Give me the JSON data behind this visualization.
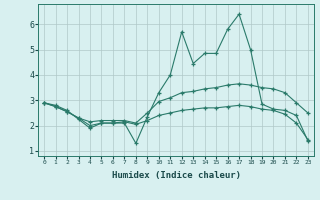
{
  "xlabel": "Humidex (Indice chaleur)",
  "x": [
    0,
    1,
    2,
    3,
    4,
    5,
    6,
    7,
    8,
    9,
    10,
    11,
    12,
    13,
    14,
    15,
    16,
    17,
    18,
    19,
    20,
    21,
    22,
    23
  ],
  "line_max": [
    2.9,
    2.8,
    2.6,
    2.25,
    1.9,
    2.1,
    2.1,
    2.1,
    1.3,
    2.35,
    3.3,
    4.0,
    5.7,
    4.45,
    4.85,
    4.85,
    5.8,
    6.4,
    5.0,
    2.85,
    2.65,
    2.6,
    2.4,
    1.4
  ],
  "line_mean": [
    2.9,
    2.75,
    2.55,
    2.3,
    2.15,
    2.2,
    2.2,
    2.2,
    2.1,
    2.5,
    2.95,
    3.1,
    3.3,
    3.35,
    3.45,
    3.5,
    3.6,
    3.65,
    3.6,
    3.5,
    3.45,
    3.3,
    2.9,
    2.5
  ],
  "line_min": [
    2.9,
    2.75,
    2.55,
    2.3,
    2.0,
    2.1,
    2.1,
    2.15,
    2.05,
    2.2,
    2.4,
    2.5,
    2.6,
    2.65,
    2.7,
    2.7,
    2.75,
    2.8,
    2.75,
    2.65,
    2.6,
    2.45,
    2.1,
    1.45
  ],
  "color": "#2a7a6a",
  "bg_color": "#d8f0f0",
  "grid_color": "#b0c8c8",
  "ylim": [
    0.8,
    6.8
  ],
  "xlim": [
    -0.5,
    23.5
  ],
  "xtick_labels": [
    "0",
    "1",
    "2",
    "3",
    "4",
    "5",
    "6",
    "7",
    "8",
    "9",
    "10",
    "11",
    "12",
    "13",
    "14",
    "15",
    "16",
    "17",
    "18",
    "19",
    "20",
    "21",
    "22",
    "23"
  ]
}
